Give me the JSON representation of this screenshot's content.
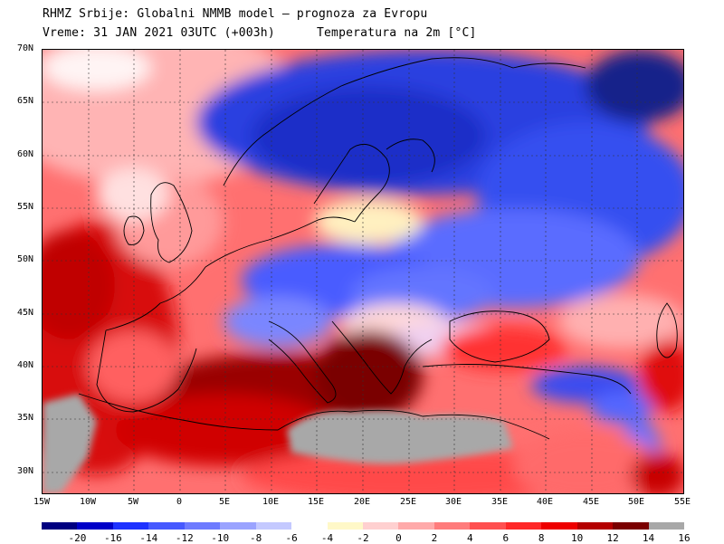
{
  "header": {
    "line1": "RHMZ Srbije: Globalni NMMB model – prognoza za Evropu",
    "line2_left": "Vreme: 31 JAN 2021 03UTC (+003h)",
    "line2_right": "Temperatura na 2m [°C]"
  },
  "map": {
    "lat_labels": [
      "70N",
      "65N",
      "60N",
      "55N",
      "50N",
      "45N",
      "40N",
      "35N",
      "30N"
    ],
    "lon_labels": [
      "15W",
      "10W",
      "5W",
      "0",
      "5E",
      "10E",
      "15E",
      "20E",
      "25E",
      "30E",
      "35E",
      "40E",
      "45E",
      "50E",
      "55E"
    ],
    "land_mask_color": "#a8a8a8"
  },
  "legend": {
    "colors": [
      "#000080",
      "#0000c8",
      "#1e32ff",
      "#4659ff",
      "#6e7bff",
      "#9aa3ff",
      "#c4c9ff",
      "#ffffff",
      "#fff8c8",
      "#ffd0d0",
      "#ffaaaa",
      "#ff7c7c",
      "#ff5050",
      "#ff2828",
      "#ee0000",
      "#b40000",
      "#7a0000",
      "#a8a8a8"
    ],
    "labels": [
      "-20",
      "-16",
      "-14",
      "-12",
      "-10",
      "-8",
      "-6",
      "-4",
      "-2",
      "0",
      "2",
      "4",
      "6",
      "8",
      "10",
      "12",
      "14",
      "16"
    ]
  }
}
